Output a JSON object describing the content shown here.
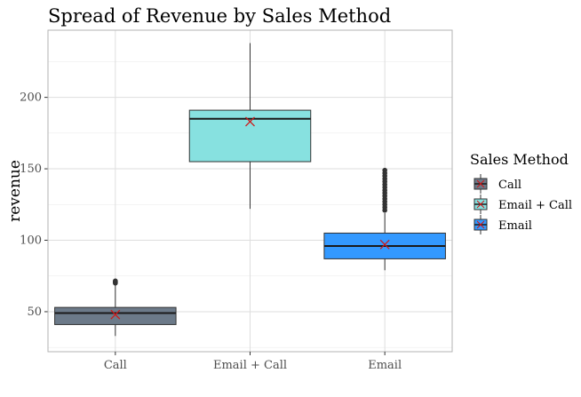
{
  "chart_data": {
    "type": "boxplot",
    "title": "Spread of Revenue by Sales Method",
    "xlabel": "",
    "ylabel": "revenue",
    "categories": [
      "Call",
      "Email + Call",
      "Email"
    ],
    "ylim": [
      22,
      247
    ],
    "yticks": [
      50,
      100,
      150,
      200
    ],
    "grid": true,
    "legend": {
      "title": "Sales Method",
      "placement": "right"
    },
    "series": [
      {
        "name": "Call",
        "color": "#6c7a89",
        "whisker_low": 33,
        "q1": 41,
        "median": 49,
        "q3": 53,
        "whisker_high": 69,
        "mean": 48,
        "outliers": [
          70,
          70.5,
          71,
          71.5
        ]
      },
      {
        "name": "Email + Call",
        "color": "#87e1e0",
        "whisker_low": 122,
        "q1": 155,
        "median": 185,
        "q3": 191,
        "whisker_high": 238,
        "mean": 183,
        "outliers": []
      },
      {
        "name": "Email",
        "color": "#3399ff",
        "whisker_low": 79,
        "q1": 87,
        "median": 96,
        "q3": 105,
        "whisker_high": 119,
        "mean": 97,
        "outliers": [
          121,
          123,
          125,
          127,
          129,
          131,
          133,
          135,
          137,
          139,
          141,
          143,
          145,
          147,
          149
        ]
      }
    ],
    "mean_marker": {
      "shape": "x",
      "color": "#cc1a1a"
    }
  }
}
